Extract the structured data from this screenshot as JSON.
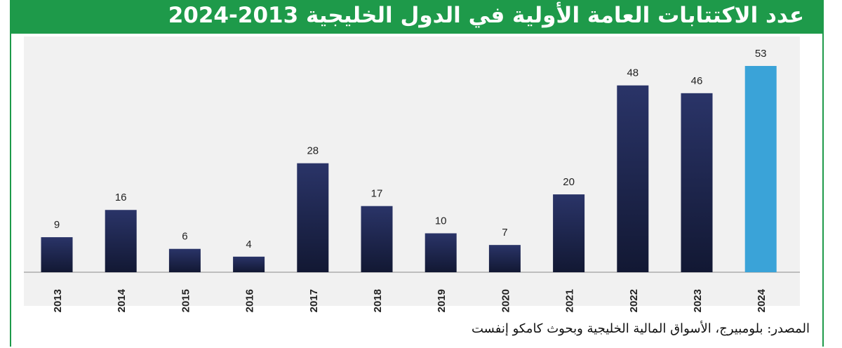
{
  "title": "عدد الاكتتابات العامة الأولية في الدول الخليجية 2013-2024",
  "source": "المصدر: بلومبيرج، الأسواق المالية الخليجية وبحوث كامكو إنفست",
  "colors": {
    "header": "#1e9a4a",
    "bar": "#1c2452",
    "highlight": "#3aa3d8"
  },
  "chart_data": {
    "type": "bar",
    "categories": [
      "2013",
      "2014",
      "2015",
      "2016",
      "2017",
      "2018",
      "2019",
      "2020",
      "2021",
      "2022",
      "2023",
      "2024"
    ],
    "values": [
      9,
      16,
      6,
      4,
      28,
      17,
      10,
      7,
      20,
      48,
      46,
      53
    ],
    "highlight_index": 11,
    "ylim": [
      0,
      55
    ],
    "grid": false,
    "legend": "none",
    "data_labels": true
  }
}
